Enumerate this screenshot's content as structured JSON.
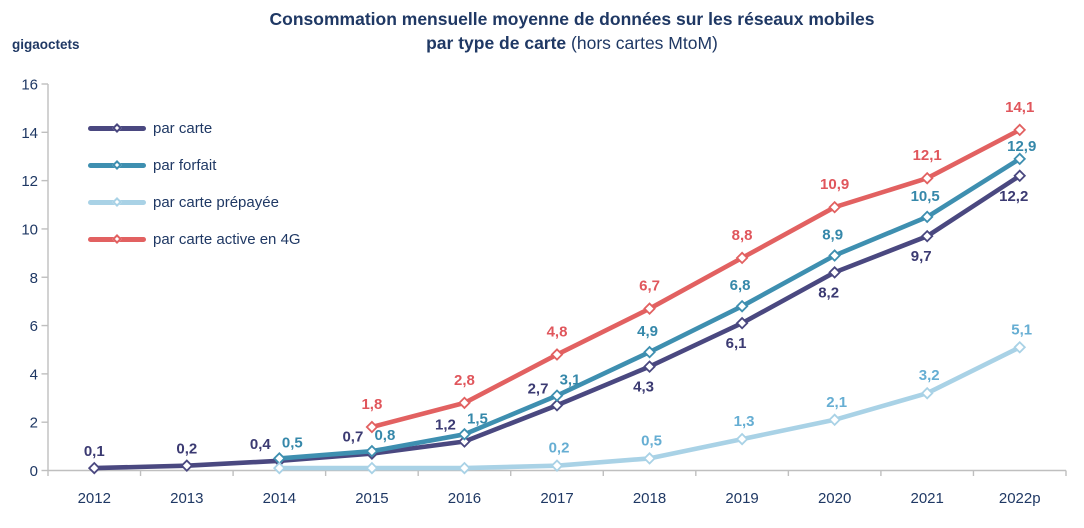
{
  "title": {
    "line1": "Consommation mensuelle moyenne de données sur les réseaux mobiles",
    "line2_bold": "par type de carte",
    "line2_note": " (hors cartes MtoM)"
  },
  "y_axis_unit": "gigaoctets",
  "colors": {
    "title_text": "#1F3864",
    "axis_text": "#1F3864",
    "axis_line": "#BFBFBF",
    "background": "#FFFFFF"
  },
  "chart_data": {
    "type": "line",
    "categories": [
      "2012",
      "2013",
      "2014",
      "2015",
      "2016",
      "2017",
      "2018",
      "2019",
      "2020",
      "2021",
      "2022p"
    ],
    "xlabel": "",
    "ylabel": "gigaoctets",
    "ylim": [
      0,
      16
    ],
    "ytick_step": 2,
    "grid": false,
    "legend_position": "top-left-inside",
    "marker": "diamond-open",
    "series": [
      {
        "name": "par carte",
        "color": "#4A4880",
        "label_color": "#3B3A72",
        "values": [
          0.1,
          0.2,
          0.4,
          0.7,
          1.2,
          2.7,
          4.3,
          6.1,
          8.2,
          9.7,
          12.2
        ],
        "labels": [
          "0,1",
          "0,2",
          "0,4",
          "0,7",
          "1,2",
          "2,7",
          "4,3",
          "6,1",
          "8,2",
          "9,7",
          "12,2"
        ]
      },
      {
        "name": "par forfait",
        "color": "#3E8FB0",
        "label_color": "#3688AA",
        "values": [
          null,
          null,
          0.5,
          0.8,
          1.5,
          3.1,
          4.9,
          6.8,
          8.9,
          10.5,
          12.9
        ],
        "labels": [
          null,
          null,
          "0,5",
          "0,8",
          "1,5",
          "3,1",
          "4,9",
          "6,8",
          "8,9",
          "10,5",
          "12,9"
        ]
      },
      {
        "name": "par carte prépayée",
        "color": "#A9D2E6",
        "label_color": "#66AED3",
        "values": [
          null,
          null,
          0.1,
          0.1,
          0.1,
          0.2,
          0.5,
          1.3,
          2.1,
          3.2,
          5.1
        ],
        "labels": [
          null,
          null,
          null,
          null,
          null,
          "0,2",
          "0,5",
          "1,3",
          "2,1",
          "3,2",
          "5,1"
        ]
      },
      {
        "name": "par carte active en 4G",
        "color": "#E26161",
        "label_color": "#E0565C",
        "values": [
          null,
          null,
          null,
          1.8,
          2.8,
          4.8,
          6.7,
          8.8,
          10.9,
          12.1,
          14.1
        ],
        "labels": [
          null,
          null,
          null,
          "1,8",
          "2,8",
          "4,8",
          "6,7",
          "8,8",
          "10,9",
          "12,1",
          "14,1"
        ]
      }
    ]
  }
}
